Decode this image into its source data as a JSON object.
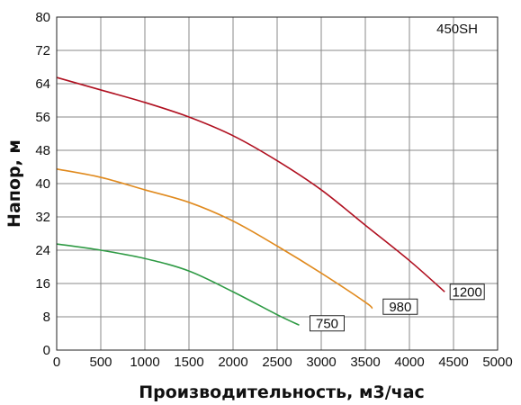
{
  "chart_data": {
    "type": "line",
    "title": "",
    "model_label": "450SH",
    "xlabel": "Производительность, м3/час",
    "ylabel": "Напор, м",
    "xlim": [
      0,
      5000
    ],
    "ylim": [
      0,
      80
    ],
    "x_ticks": [
      0,
      500,
      1000,
      1500,
      2000,
      2500,
      3000,
      3500,
      4000,
      4500,
      5000
    ],
    "y_ticks": [
      0,
      8,
      16,
      24,
      32,
      40,
      48,
      56,
      64,
      72,
      80
    ],
    "grid": true,
    "series": [
      {
        "name": "1200",
        "color": "#b01020",
        "x": [
          0,
          500,
          1000,
          1500,
          2000,
          2500,
          3000,
          3500,
          4000,
          4400
        ],
        "y": [
          65.5,
          62.5,
          59.5,
          56,
          51.5,
          45.5,
          38.5,
          30,
          21.5,
          14
        ]
      },
      {
        "name": "980",
        "color": "#e08a1e",
        "x": [
          0,
          500,
          1000,
          1500,
          2000,
          2500,
          3000,
          3500,
          3580
        ],
        "y": [
          43.5,
          41.5,
          38.5,
          35.5,
          31,
          25,
          18.5,
          11.5,
          10
        ]
      },
      {
        "name": "750",
        "color": "#2e9a44",
        "x": [
          0,
          500,
          1000,
          1500,
          2000,
          2500,
          2750
        ],
        "y": [
          25.5,
          24,
          22,
          19,
          14,
          8.5,
          6
        ]
      }
    ]
  }
}
